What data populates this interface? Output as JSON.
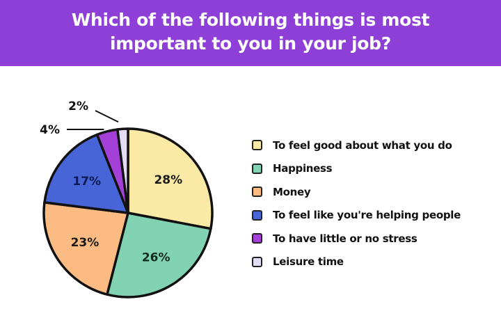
{
  "chart_data": {
    "type": "pie",
    "title": "Which of the following things is most important to you in your job?",
    "start": "top",
    "direction": "clockwise",
    "legend_position": "right",
    "slices": [
      {
        "label": "To feel good about what you do",
        "value": 28,
        "text": "28%",
        "color": "#fbe9a6"
      },
      {
        "label": "Happiness",
        "value": 26,
        "text": "26%",
        "color": "#82d3b4"
      },
      {
        "label": "Money",
        "value": 23,
        "text": "23%",
        "color": "#fdbb84"
      },
      {
        "label": "To feel like you're helping people",
        "value": 17,
        "text": "17%",
        "color": "#4765d6"
      },
      {
        "label": "To have little or no stress",
        "value": 4,
        "text": "4%",
        "color": "#a43fd8"
      },
      {
        "label": "Leisure time",
        "value": 2,
        "text": "2%",
        "color": "#e3dcf8"
      }
    ]
  },
  "colors": {
    "header": "#8d3fd8"
  }
}
